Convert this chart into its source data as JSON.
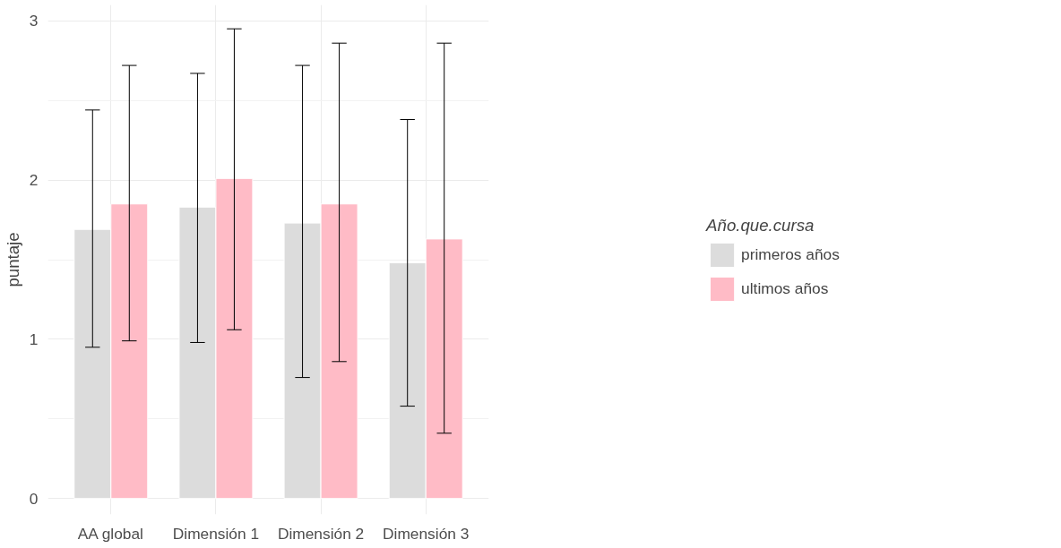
{
  "chart_data": {
    "type": "bar",
    "ylabel": "puntaje",
    "legend_title": "Año.que.cursa",
    "categories": [
      "AA global",
      "Dimensión 1",
      "Dimensión 2",
      "Dimensión 3"
    ],
    "series": [
      {
        "name": "primeros años",
        "color": "#dcdcdc",
        "values": [
          1.69,
          1.83,
          1.73,
          1.48
        ],
        "errors": [
          [
            0.95,
            2.44
          ],
          [
            0.98,
            2.67
          ],
          [
            0.76,
            2.72
          ],
          [
            0.58,
            2.38
          ]
        ]
      },
      {
        "name": "ultimos años",
        "color": "#ffbbc6",
        "values": [
          1.85,
          2.01,
          1.85,
          1.63
        ],
        "errors": [
          [
            0.99,
            2.72
          ],
          [
            1.06,
            2.95
          ],
          [
            0.86,
            2.86
          ],
          [
            0.41,
            2.86
          ]
        ]
      }
    ],
    "ylim": [
      -0.1,
      3.1
    ],
    "yticks": [
      0,
      1,
      2,
      3
    ],
    "grid": true,
    "legend": "right"
  }
}
